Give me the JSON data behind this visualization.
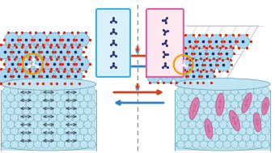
{
  "bg_color": "#ffffff",
  "hex_fill": "#a8d8f0",
  "hex_edge": "#5aA0c8",
  "red_dot": "#e02010",
  "dark_blue_dot": "#202868",
  "orange_circle": "#e8a000",
  "red_arrow": "#d04020",
  "blue_arrow": "#3080c0",
  "cyan_box_edge": "#40b0e0",
  "cyan_box_fill": "#d8f0fa",
  "pink_box_edge": "#e060a0",
  "pink_box_fill": "#fde8f0",
  "cylinder_fill": "#c0e4f0",
  "cylinder_edge": "#70a8c0",
  "pink_ellipse_fill": "#e070a8",
  "pink_ellipse_edge": "#c05080",
  "mol_color": "#303878",
  "dashed_color": "#909090",
  "parallelogram": "#c0c0c0",
  "flame_red": "#e03010",
  "flame_blue": "#40a8e0"
}
